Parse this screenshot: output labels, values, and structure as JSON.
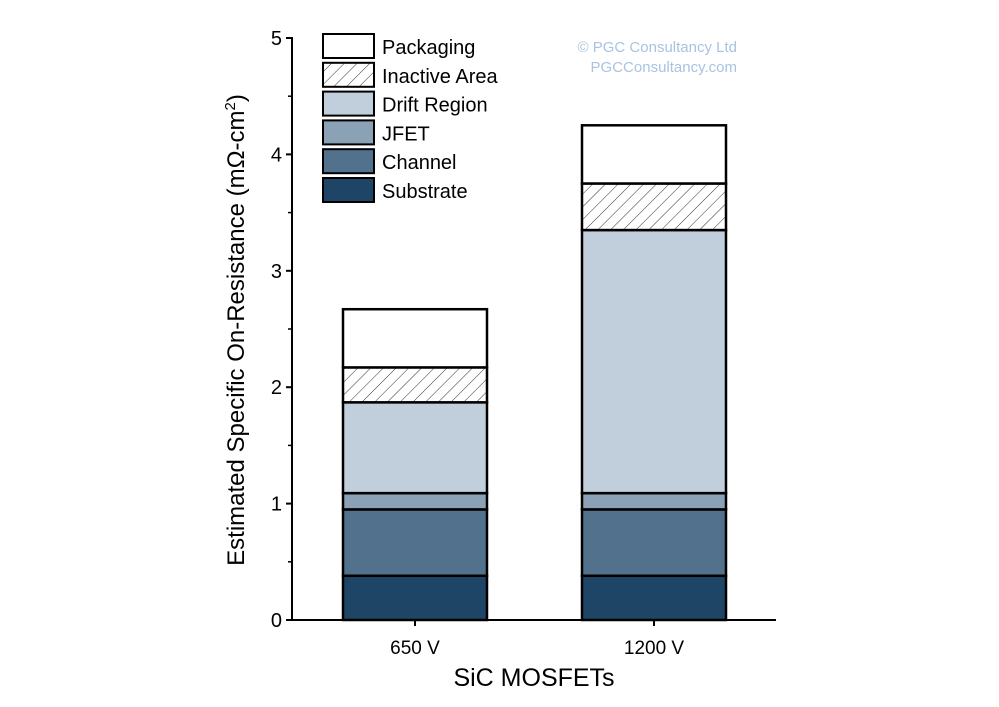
{
  "watermark": {
    "line1": "© PGC Consultancy Ltd",
    "line2": "PGCConsultancy.com",
    "color": "#a8c4e0"
  },
  "chart_data": {
    "type": "bar",
    "stacked": true,
    "title": "",
    "xlabel": "SiC MOSFETs",
    "ylabel": "Estimated Specific On-Resistance (mΩ-cm",
    "ylabel_sup": "2",
    "ylabel_end": ")",
    "ylim": [
      0,
      5
    ],
    "yticks": [
      "0",
      "1",
      "2",
      "3",
      "4",
      "5"
    ],
    "grid": false,
    "legend_position": "top-left",
    "categories": [
      "650 V",
      "1200 V"
    ],
    "series": [
      {
        "name": "Substrate",
        "color": "#1f4566",
        "values": [
          0.38,
          0.38
        ]
      },
      {
        "name": "Channel",
        "color": "#52718c",
        "values": [
          0.57,
          0.57
        ]
      },
      {
        "name": "JFET",
        "color": "#8ba2b6",
        "values": [
          0.14,
          0.14
        ]
      },
      {
        "name": "Drift Region",
        "color": "#c0cfdb",
        "values": [
          0.78,
          2.26
        ]
      },
      {
        "name": "Inactive Area",
        "color": "hatch",
        "values": [
          0.3,
          0.4
        ]
      },
      {
        "name": "Packaging",
        "color": "#ffffff",
        "values": [
          0.5,
          0.5
        ]
      }
    ]
  }
}
